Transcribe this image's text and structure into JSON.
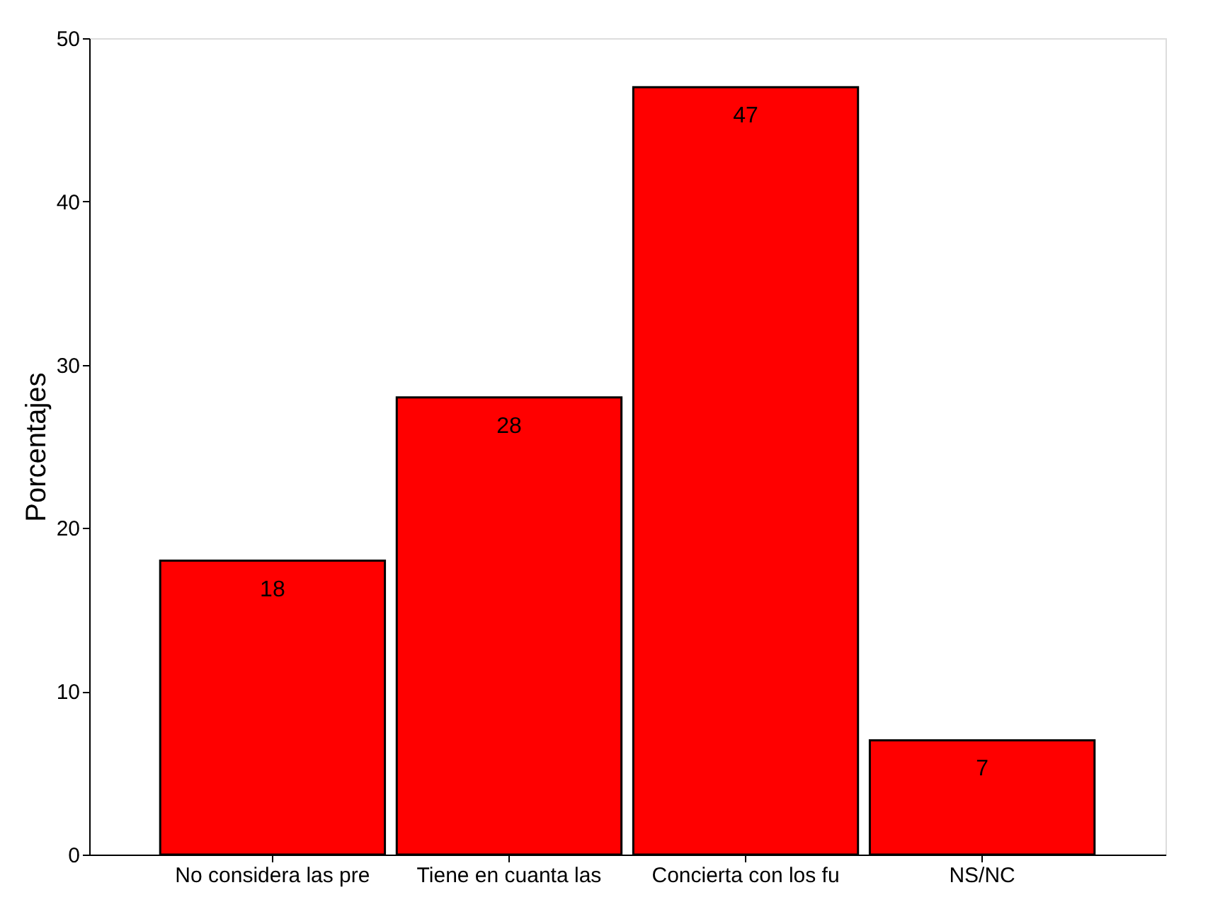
{
  "chart_data": {
    "type": "bar",
    "ylabel": "Porcentajes",
    "categories": [
      "No considera las pre",
      "Tiene en cuanta las",
      "Concierta con los fu",
      "NS/NC"
    ],
    "values": [
      18,
      28,
      47,
      7
    ],
    "color": "#ff0000",
    "ylim": [
      0,
      50
    ],
    "yticks": [
      0,
      10,
      20,
      30,
      40,
      50
    ],
    "data_labels": true
  }
}
